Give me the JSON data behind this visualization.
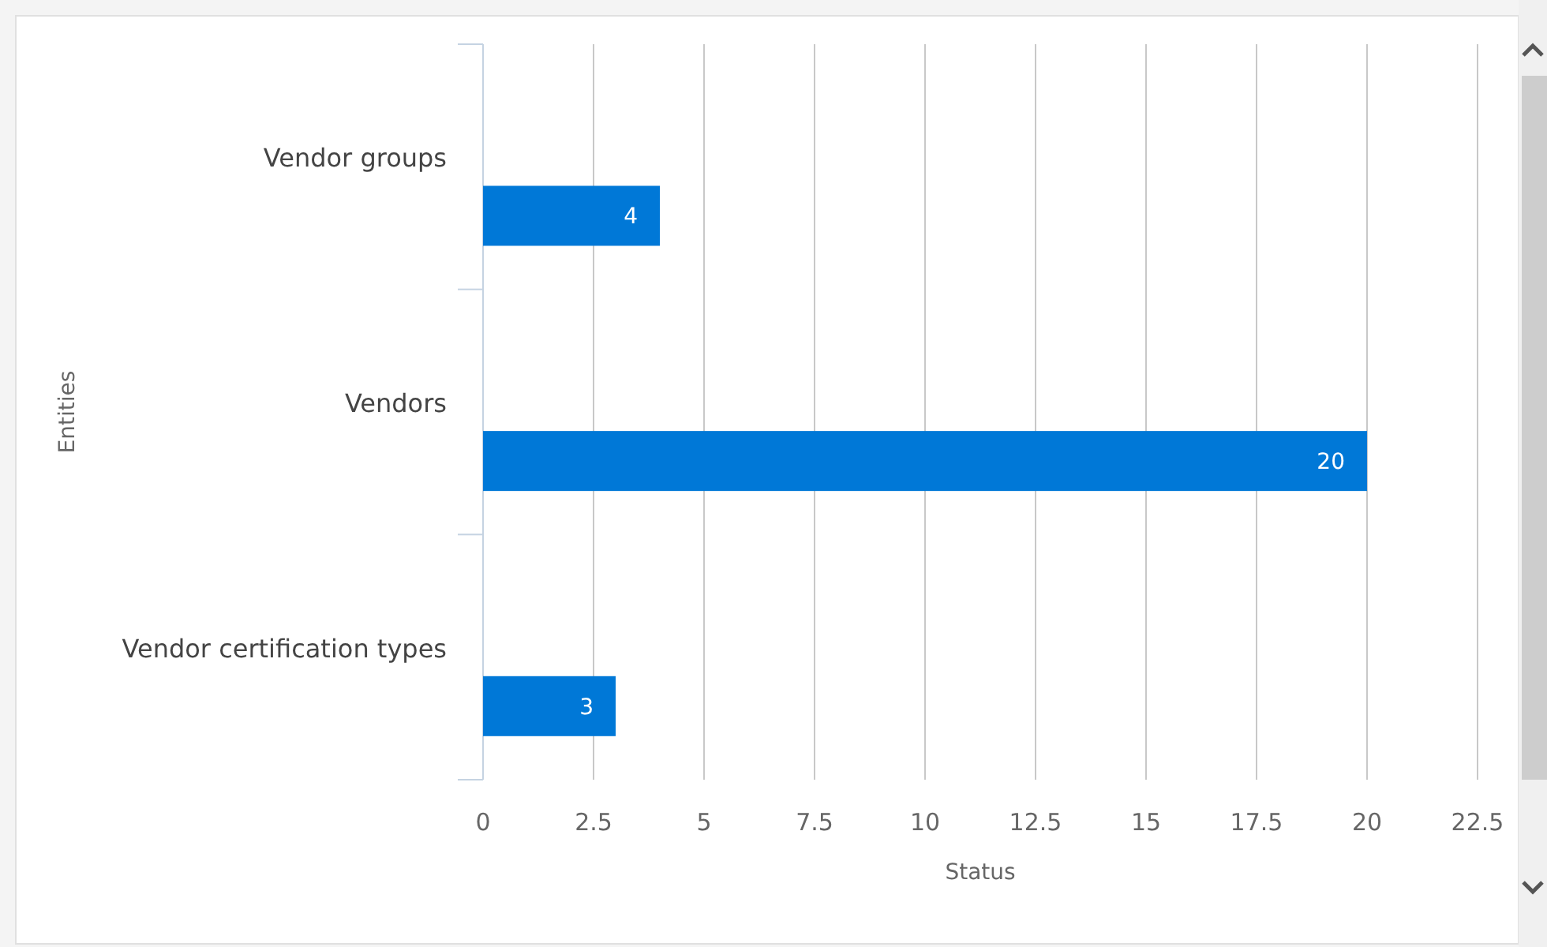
{
  "chart_data": {
    "type": "bar",
    "orientation": "horizontal",
    "xlabel": "Status",
    "ylabel": "Entities",
    "categories": [
      "Vendor groups",
      "Vendors",
      "Vendor certification types"
    ],
    "values": [
      4,
      20,
      3
    ],
    "color": "#0078d7",
    "data_labels": true,
    "xlim": [
      0,
      22.5
    ],
    "xticks": [
      0,
      2.5,
      5,
      7.5,
      10,
      12.5,
      15,
      17.5,
      20,
      22.5
    ],
    "grid": "x"
  }
}
